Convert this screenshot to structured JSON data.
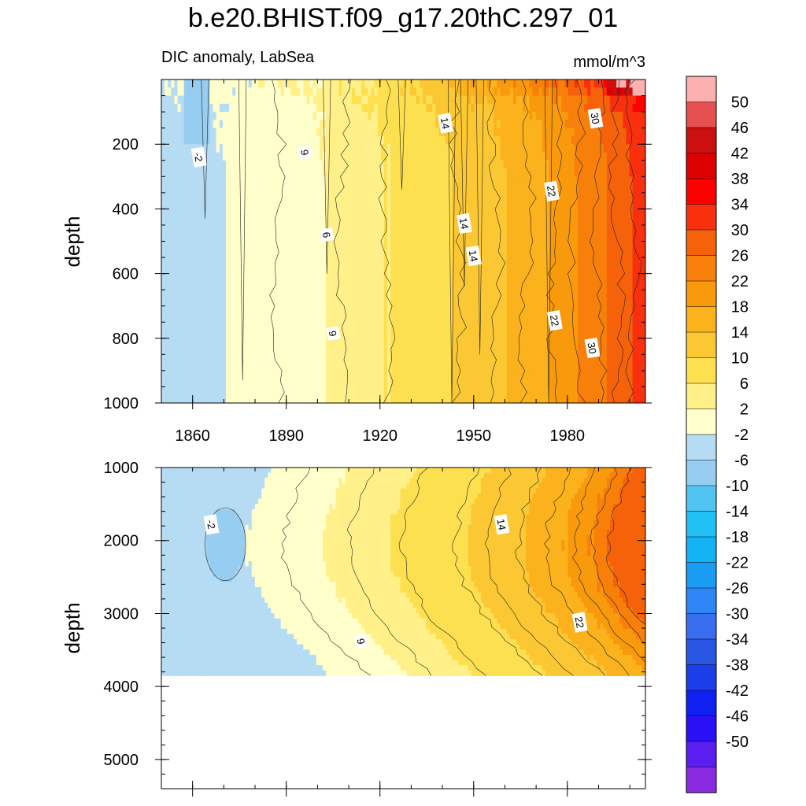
{
  "title": "b.e20.BHIST.f09_g17.20thC.297_01",
  "colors": {
    "contour_line": "#222222",
    "label_bg": "#ffffff",
    "border": "#000000"
  },
  "chart_data": [
    {
      "type": "heatmap",
      "panel": "upper",
      "title": "DIC anomaly, LabSea",
      "units": "mmol/m^3",
      "xlabel": "",
      "ylabel": "depth",
      "xlim": [
        1850,
        2005
      ],
      "ylim": [
        0,
        1000
      ],
      "y_inverted": true,
      "x_ticks": [
        1860,
        1890,
        1920,
        1950,
        1980
      ],
      "x_tick_labels": [
        "1860",
        "1890",
        "1920",
        "1950",
        "1980"
      ],
      "y_ticks": [
        200,
        400,
        600,
        800,
        1000
      ],
      "y_tick_labels": [
        "200",
        "400",
        "600",
        "800",
        "1000"
      ],
      "profile_years": [
        1850,
        1860,
        1875,
        1890,
        1905,
        1920,
        1935,
        1950,
        1965,
        1975,
        1985,
        1995,
        2005
      ],
      "profile_values": [
        0.5,
        1.0,
        2.5,
        4.0,
        6.5,
        9.5,
        12.5,
        15.5,
        19.0,
        22.5,
        26.5,
        31.0,
        36.0
      ],
      "contour_labels": [
        {
          "text": "-2",
          "year": 1862,
          "depth": 240
        },
        {
          "text": "9",
          "year": 1896,
          "depth": 225
        },
        {
          "text": "14",
          "year": 1941,
          "depth": 135
        },
        {
          "text": "30",
          "year": 1989,
          "depth": 120
        },
        {
          "text": "22",
          "year": 1975,
          "depth": 345
        },
        {
          "text": "14",
          "year": 1947,
          "depth": 445
        },
        {
          "text": "6",
          "year": 1903,
          "depth": 480
        },
        {
          "text": "14",
          "year": 1950,
          "depth": 545
        },
        {
          "text": "22",
          "year": 1976,
          "depth": 745
        },
        {
          "text": "9",
          "year": 1905,
          "depth": 785
        },
        {
          "text": "30",
          "year": 1988,
          "depth": 830
        }
      ]
    },
    {
      "type": "heatmap",
      "panel": "lower",
      "xlabel": "",
      "ylabel": "depth",
      "xlim": [
        1850,
        2005
      ],
      "ylim": [
        1000,
        5400
      ],
      "y_inverted": true,
      "data_bottom_depth": 3850,
      "y_ticks": [
        1000,
        2000,
        3000,
        4000,
        5000
      ],
      "y_tick_labels": [
        "1000",
        "2000",
        "3000",
        "4000",
        "5000"
      ],
      "profile_years": [
        1850,
        1865,
        1880,
        1895,
        1910,
        1925,
        1940,
        1955,
        1970,
        1985,
        1995,
        2005
      ],
      "profile_values": [
        0.5,
        1.0,
        1.5,
        3.0,
        6.0,
        9.0,
        11.5,
        14.0,
        17.0,
        21.0,
        26.0,
        33.0
      ],
      "negative_patch": {
        "year_from": 1864,
        "year_to": 1877,
        "depth_from": 1550,
        "depth_to": 2550,
        "value": -2
      },
      "contour_labels": [
        {
          "text": "-2",
          "year": 1866,
          "depth": 1780
        },
        {
          "text": "14",
          "year": 1959,
          "depth": 1780
        },
        {
          "text": "22",
          "year": 1984,
          "depth": 3120
        },
        {
          "text": "9",
          "year": 1914,
          "depth": 3380
        }
      ]
    }
  ],
  "colorbar": {
    "levels": [
      -50,
      -46,
      -42,
      -38,
      -34,
      -30,
      -26,
      -22,
      -18,
      -14,
      -10,
      -6,
      -2,
      2,
      6,
      10,
      14,
      18,
      22,
      26,
      30,
      34,
      38,
      42,
      46,
      50
    ],
    "labels": [
      "-50",
      "-46",
      "-42",
      "-38",
      "-34",
      "-30",
      "-26",
      "-22",
      "-18",
      "-14",
      "-10",
      "-6",
      "-2",
      "2",
      "6",
      "10",
      "14",
      "18",
      "22",
      "26",
      "30",
      "34",
      "38",
      "42",
      "46",
      "50"
    ],
    "colors": [
      "#8a2be2",
      "#5a1ef0",
      "#2a10f5",
      "#1020f0",
      "#1a3ee8",
      "#2a56e4",
      "#3a6ef0",
      "#2e86f5",
      "#1a9cf5",
      "#12b2f5",
      "#20c0f5",
      "#50c4f2",
      "#96cdf0",
      "#b6dcf4",
      "#ffffcc",
      "#fff08a",
      "#fde050",
      "#fbc834",
      "#fbb21c",
      "#f99a0c",
      "#f8800a",
      "#f5620a",
      "#f8300e",
      "#ff0000",
      "#dd0000",
      "#cc1010",
      "#e65050",
      "#fdb0b0"
    ]
  }
}
